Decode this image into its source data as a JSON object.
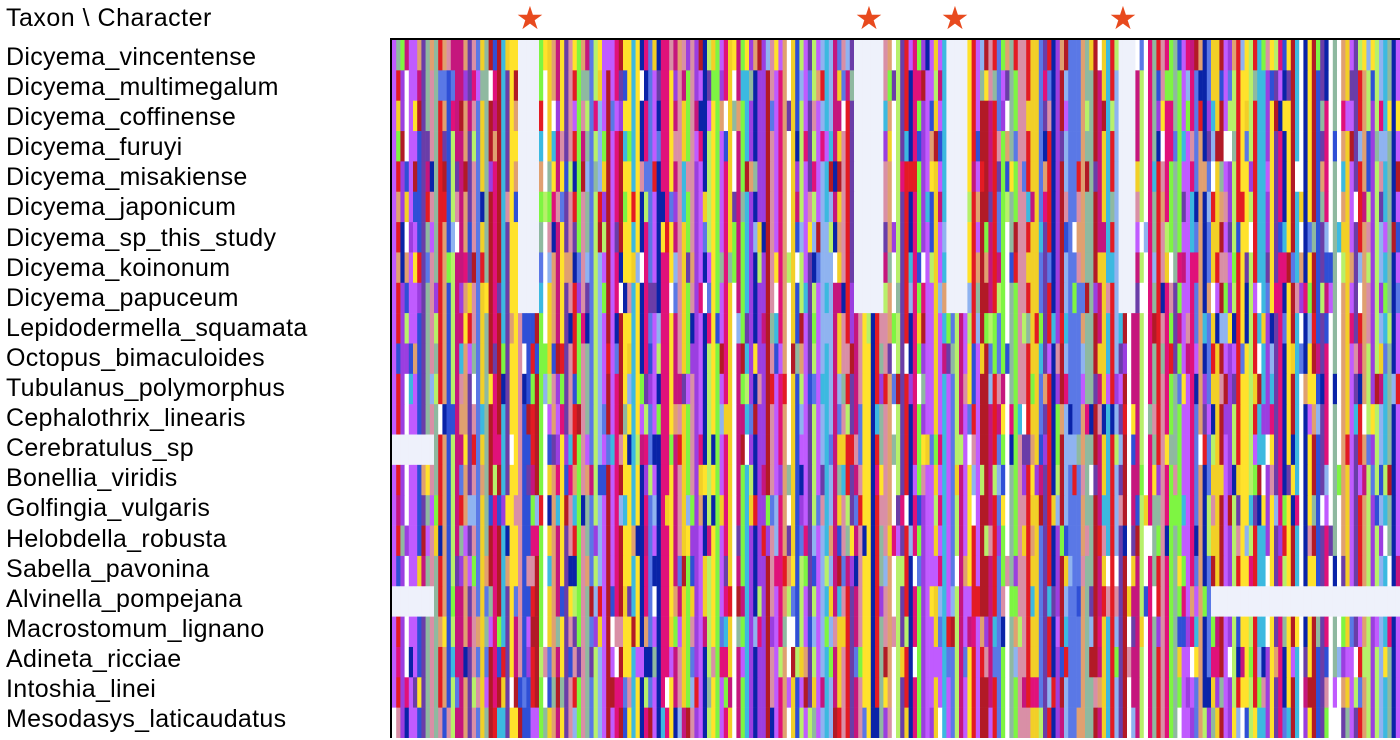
{
  "header": {
    "label": "Taxon \\ Character"
  },
  "marked_character_icon": "star-icon",
  "marker_color": "#e84a1e",
  "taxa": [
    "Dicyema_vincentense",
    "Dicyema_multimegalum",
    "Dicyema_coffinense",
    "Dicyema_furuyi",
    "Dicyema_misakiense",
    "Dicyema_japonicum",
    "Dicyema_sp_this_study",
    "Dicyema_koinonum",
    "Dicyema_papuceum",
    "Lepidodermella_squamata",
    "Octopus_bimaculoides",
    "Tubulanus_polymorphus",
    "Cephalothrix_linearis",
    "Cerebratulus_sp",
    "Bonellia_viridis",
    "Golfingia_vulgaris",
    "Helobdella_robusta",
    "Sabella_pavonina",
    "Alvinella_pompejana",
    "Macrostomum_lignano",
    "Adineta_ricciae",
    "Intoshia_linei",
    "Mesodasys_laticaudatus"
  ],
  "state_palette": [
    "#0a23a8",
    "#8fb3f0",
    "#5a78e6",
    "#2f4fd6",
    "#c5167d",
    "#e0117a",
    "#e31b23",
    "#b21a26",
    "#ffe22b",
    "#f2cf27",
    "#7ef542",
    "#b7f06a",
    "#9b3ee0",
    "#c05bff",
    "#8fb9a0",
    "#e0a070",
    "#d98fa6",
    "#6a3da8",
    "#3cb9e0",
    "#ffffff"
  ],
  "gap_color": "#eef1fb"
}
